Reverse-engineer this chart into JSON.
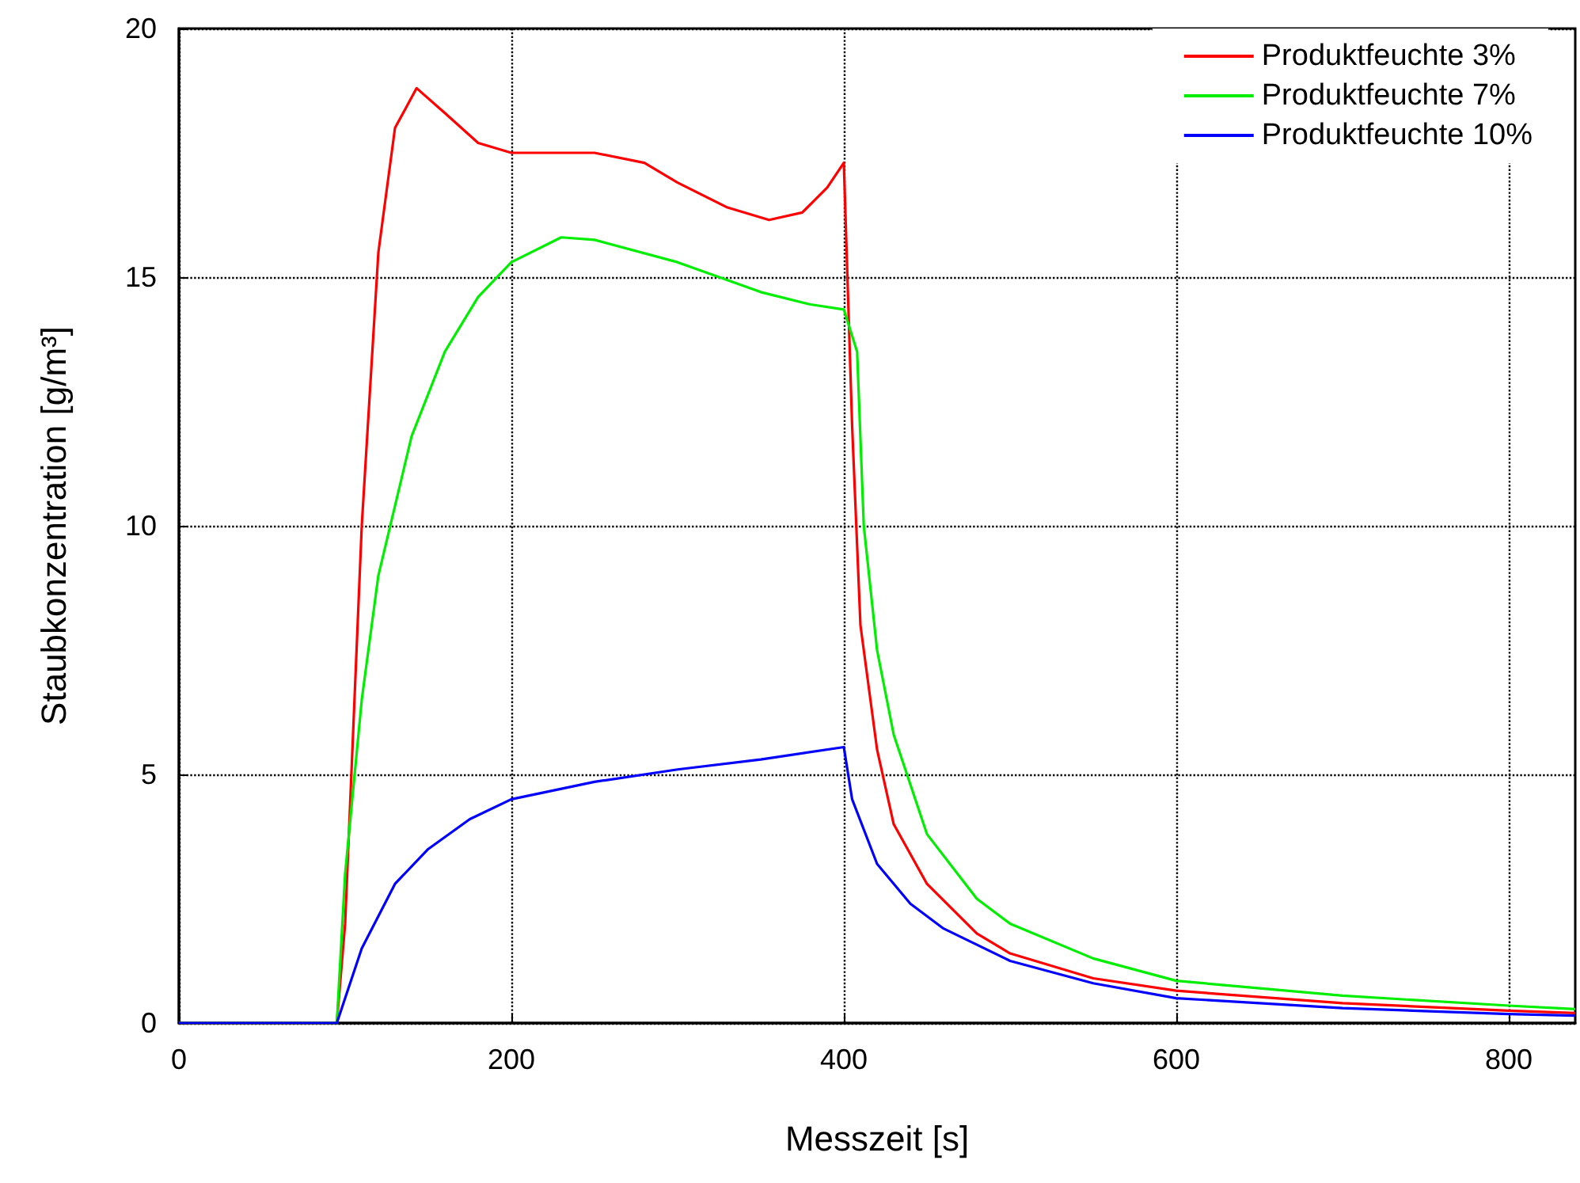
{
  "chart_data": {
    "type": "line",
    "xlabel": "Messzeit [s]",
    "ylabel": "Staubkonzentration [g/m³]",
    "xlim": [
      0,
      840
    ],
    "xticks": [
      0,
      200,
      400,
      600,
      800
    ],
    "ylim": [
      0,
      20
    ],
    "yticks": [
      0,
      5,
      10,
      15,
      20
    ],
    "grid": true,
    "legend": "top right",
    "marker": "none",
    "line_style": "solid",
    "series": [
      {
        "name": "Produktfeuchte 3%",
        "color": "#ff0000",
        "x": [
          0,
          95,
          100,
          110,
          120,
          130,
          143,
          160,
          180,
          200,
          250,
          280,
          300,
          330,
          355,
          375,
          390,
          400,
          405,
          410,
          420,
          430,
          450,
          480,
          500,
          550,
          600,
          700,
          800,
          840
        ],
        "values": [
          0,
          0,
          2,
          10,
          15.5,
          18,
          18.8,
          18.3,
          17.7,
          17.5,
          17.5,
          17.3,
          16.9,
          16.4,
          16.15,
          16.3,
          16.8,
          17.3,
          12,
          8,
          5.5,
          4,
          2.8,
          1.8,
          1.4,
          0.9,
          0.65,
          0.4,
          0.25,
          0.2
        ]
      },
      {
        "name": "Produktfeuchte 7%",
        "color": "#00ee00",
        "x": [
          0,
          95,
          100,
          110,
          120,
          140,
          160,
          180,
          200,
          230,
          250,
          300,
          350,
          380,
          400,
          408,
          412,
          420,
          430,
          450,
          480,
          500,
          550,
          600,
          700,
          800,
          840
        ],
        "values": [
          0,
          0,
          3,
          6.5,
          9,
          11.8,
          13.5,
          14.6,
          15.3,
          15.8,
          15.75,
          15.3,
          14.7,
          14.45,
          14.35,
          13.5,
          10,
          7.5,
          5.8,
          3.8,
          2.5,
          2,
          1.3,
          0.85,
          0.55,
          0.35,
          0.28
        ]
      },
      {
        "name": "Produktfeuchte 10%",
        "color": "#0000ff",
        "x": [
          0,
          95,
          110,
          130,
          150,
          175,
          200,
          250,
          300,
          350,
          400,
          405,
          420,
          440,
          460,
          500,
          550,
          600,
          700,
          800,
          840
        ],
        "values": [
          0,
          0,
          1.5,
          2.8,
          3.5,
          4.1,
          4.5,
          4.85,
          5.1,
          5.3,
          5.55,
          4.5,
          3.2,
          2.4,
          1.9,
          1.25,
          0.8,
          0.5,
          0.3,
          0.18,
          0.15
        ]
      }
    ]
  }
}
